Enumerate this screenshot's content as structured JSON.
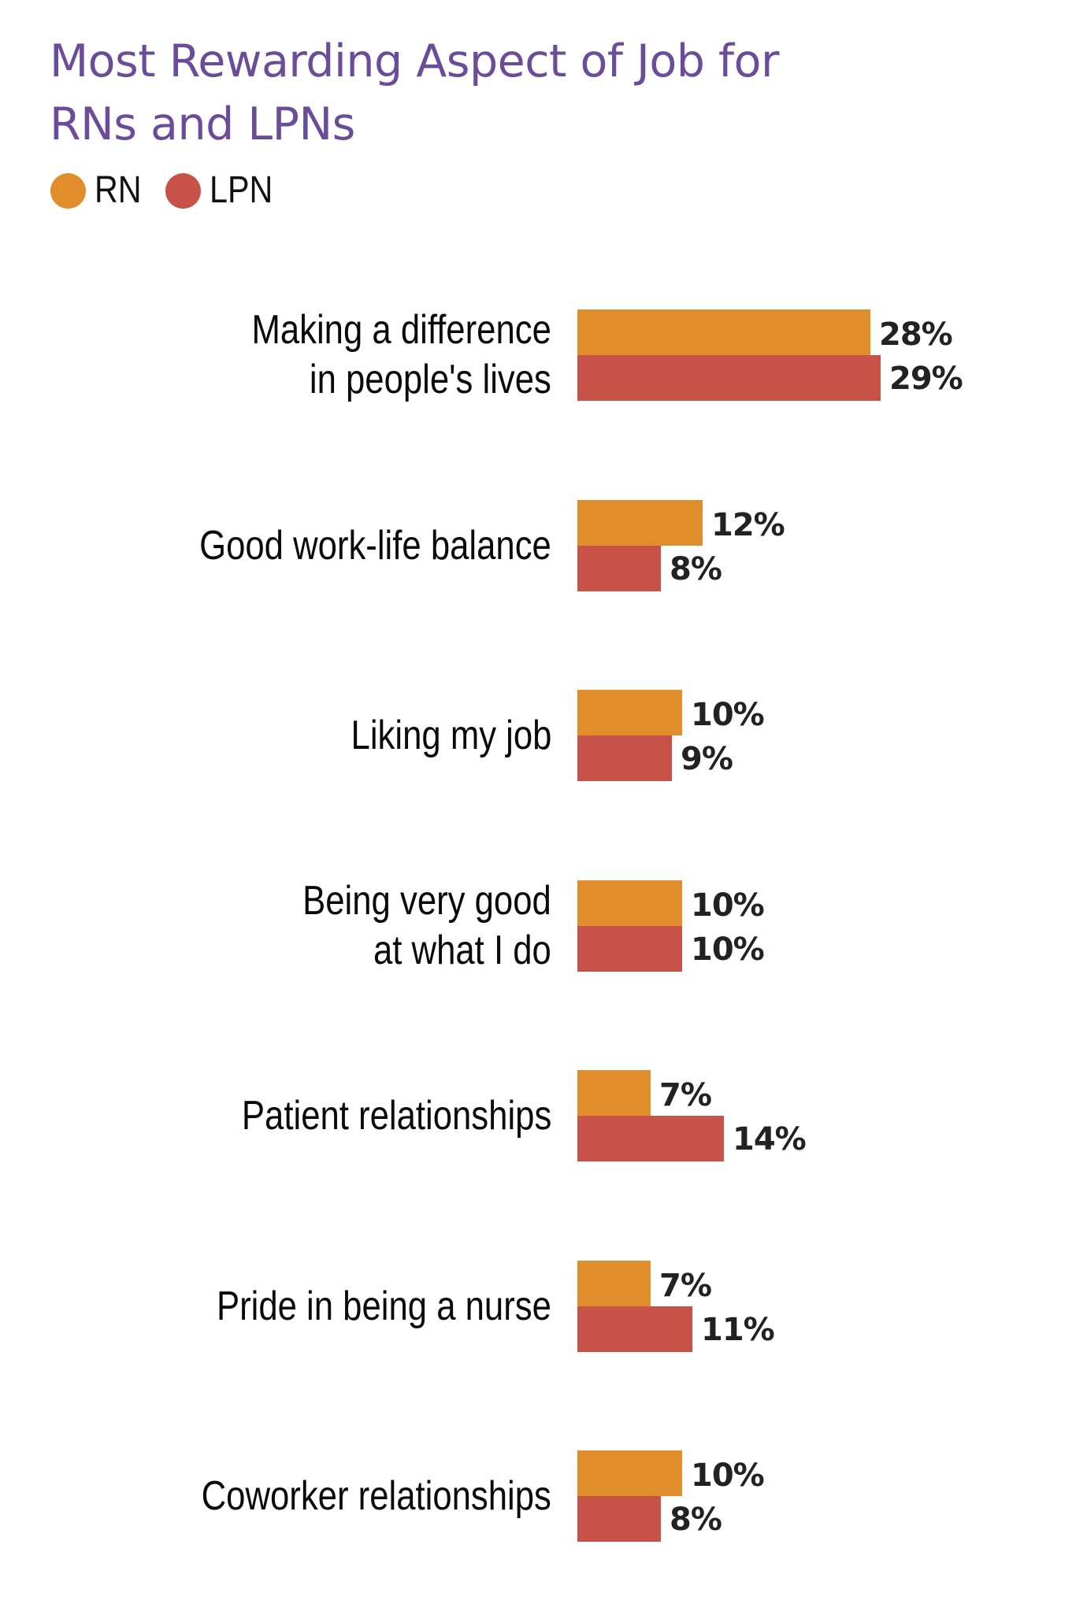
{
  "title": {
    "line1": "Most Rewarding Aspect of Job for",
    "line2": "RNs and LPNs"
  },
  "legend": [
    {
      "label": "RN",
      "color": "#E08E2B"
    },
    {
      "label": "LPN",
      "color": "#C85248"
    }
  ],
  "colors": {
    "title": "#6B4C9A",
    "rn": "#E08E2B",
    "lpn": "#C85248",
    "text": "#0A0A0A"
  },
  "chart_data": {
    "type": "bar",
    "orientation": "horizontal",
    "title": "Most Rewarding Aspect of Job for RNs and LPNs",
    "xlabel": "",
    "ylabel": "",
    "grid": false,
    "legend_position": "top-left",
    "value_format": "percent",
    "categories": [
      "Making a difference in people's lives",
      "Good work-life balance",
      "Liking my job",
      "Being very good at what I do",
      "Patient relationships",
      "Pride in being a nurse",
      "Coworker relationships"
    ],
    "category_lines": [
      [
        "Making a difference",
        "in people's lives"
      ],
      [
        "Good work-life balance"
      ],
      [
        "Liking my job"
      ],
      [
        "Being very good",
        "at what I do"
      ],
      [
        "Patient relationships"
      ],
      [
        "Pride in being a nurse"
      ],
      [
        "Coworker relationships"
      ]
    ],
    "series": [
      {
        "name": "RN",
        "color": "#E08E2B",
        "values": [
          28,
          12,
          10,
          10,
          7,
          7,
          10
        ]
      },
      {
        "name": "LPN",
        "color": "#C85248",
        "values": [
          29,
          8,
          9,
          10,
          14,
          11,
          8
        ]
      }
    ],
    "value_labels": {
      "RN": [
        "28%",
        "12%",
        "10%",
        "10%",
        "7%",
        "7%",
        "10%"
      ],
      "LPN": [
        "29%",
        "8%",
        "9%",
        "10%",
        "14%",
        "11%",
        "8%"
      ]
    }
  }
}
